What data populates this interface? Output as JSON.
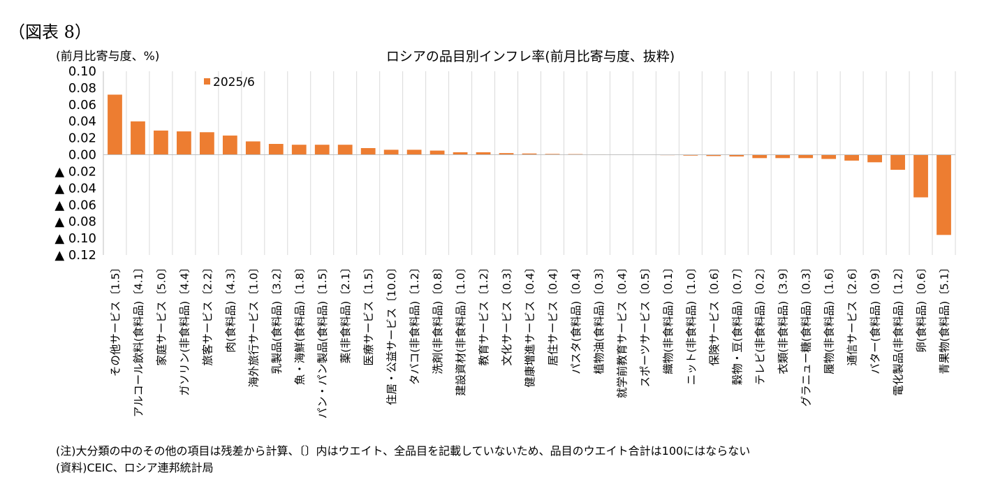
{
  "figure_label": "（図表 8）",
  "unit_label": "(前月比寄与度、%)",
  "notes": [
    "(注)大分類の中のその他の項目は残差から計算、〔〕内はウエイト、全品目を記載していないため、品目のウエイト合計は100にはならない",
    "(資料)CEIC、ロシア連邦統計局"
  ],
  "colors": {
    "bar": "#ED7D31",
    "grid": "#D9D9D9",
    "axis": "#BFBFBF"
  },
  "chart_data": {
    "type": "bar",
    "title": "ロシアの品目別インフレ率(前月比寄与度、抜粋)",
    "ylabel": "(前月比寄与度、%)",
    "ylim": [
      -0.12,
      0.1
    ],
    "yticks": [
      0.1,
      0.08,
      0.06,
      0.04,
      0.02,
      0.0,
      -0.02,
      -0.04,
      -0.06,
      -0.08,
      -0.1,
      -0.12
    ],
    "ytick_labels": [
      "0.10",
      "0.08",
      "0.06",
      "0.04",
      "0.02",
      "0.00",
      "▲ 0.02",
      "▲ 0.04",
      "▲ 0.06",
      "▲ 0.08",
      "▲ 0.10",
      "▲ 0.12"
    ],
    "legend": {
      "position": "top-left",
      "entries": [
        "2025/6"
      ]
    },
    "grid": "vertical",
    "categories": [
      "その他サービス〔1.5〕",
      "アルコール飲料(食料品)〔4.1〕",
      "家庭サービス〔5.0〕",
      "ガソリン(非食料品)〔4.4〕",
      "旅客サービス〔2.2〕",
      "肉(食料品)〔4.3〕",
      "海外旅行サービス〔1.0〕",
      "乳製品(食料品)〔3.2〕",
      "魚・海鮮(食料品)〔1.8〕",
      "パン・パン製品(食料品)〔1.5〕",
      "薬(非食料品)〔2.1〕",
      "医療サービス〔1.5〕",
      "住居・公益サービス〔10.0〕",
      "タバコ(非食料品)〔1.2〕",
      "洗剤(非食料品)〔0.8〕",
      "建設資材(非食料品)〔1.0〕",
      "教育サービス〔1.2〕",
      "文化サービス〔0.3〕",
      "健康増進サービス〔0.4〕",
      "居住サービス〔0.4〕",
      "パスタ(食料品)〔0.4〕",
      "植物油(食料品)〔0.3〕",
      "就学前教育サービス〔0.4〕",
      "スポーツサービス〔0.5〕",
      "織物(非食料品)〔0.1〕",
      "ニット(非食料品)〔1.0〕",
      "保険サービス〔0.6〕",
      "穀物・豆(食料品)〔0.7〕",
      "テレビ(非食料品)〔0.2〕",
      "衣類(非食料品)〔3.9〕",
      "グラニュー糖(食料品)〔0.3〕",
      "履物(非食料品)〔1.6〕",
      "通信サービス〔2.6〕",
      "バター(食料品)〔0.9〕",
      "電化製品(非食料品)〔1.2〕",
      "卵(食料品)〔0.6〕",
      "青果物(食料品)〔5.1〕"
    ],
    "series": [
      {
        "name": "2025/6",
        "values": [
          0.072,
          0.04,
          0.029,
          0.028,
          0.027,
          0.023,
          0.016,
          0.013,
          0.012,
          0.012,
          0.012,
          0.008,
          0.006,
          0.006,
          0.005,
          0.003,
          0.003,
          0.002,
          0.0015,
          0.001,
          0.0008,
          0.0005,
          0.0003,
          0.0002,
          -0.0005,
          -0.001,
          -0.0015,
          -0.002,
          -0.004,
          -0.004,
          -0.004,
          -0.005,
          -0.007,
          -0.009,
          -0.018,
          -0.051,
          -0.096
        ]
      }
    ]
  }
}
